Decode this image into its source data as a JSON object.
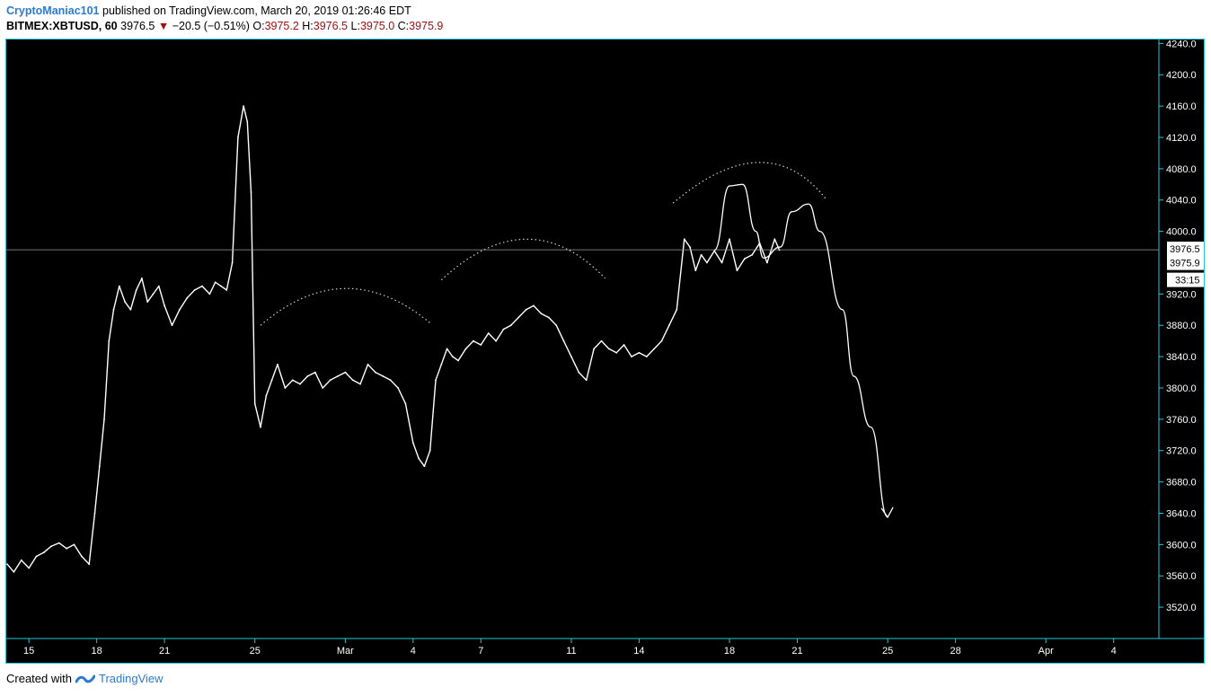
{
  "header": {
    "author": "CryptoManiac101",
    "published_text": "published on TradingView.com, March 20, 2019 01:26:46 EDT",
    "symbol": "BITMEX:XBTUSD, 60",
    "last": "3976.5",
    "change": "−20.5 (−0.51%)",
    "o_label": "O:",
    "o_val": "3975.2",
    "h_label": "H:",
    "h_val": "3976.5",
    "l_label": "L:",
    "l_val": "3975.0",
    "c_label": "C:",
    "c_val": "3975.9"
  },
  "footer": {
    "created_with": "Created with",
    "brand": "TradingView"
  },
  "colors": {
    "accent": "#26c6da",
    "author": "#2a7bd3",
    "down": "#a01010",
    "background": "#000000",
    "price_line": "#ffffff"
  },
  "chart_data": {
    "type": "line",
    "symbol": "BITMEX:XBTUSD",
    "interval": "60",
    "ylim": [
      3480,
      4245
    ],
    "yticks": [
      4240,
      4200,
      4160,
      4120,
      4080,
      4040,
      4000,
      3920,
      3880,
      3840,
      3800,
      3760,
      3720,
      3680,
      3640,
      3600,
      3560,
      3520
    ],
    "ytick_labels": [
      "4240.0",
      "4200.0",
      "4160.0",
      "4120.0",
      "4080.0",
      "4040.0",
      "4000.0",
      "3920.0",
      "3880.0",
      "3840.0",
      "3800.0",
      "3760.0",
      "3720.0",
      "3680.0",
      "3640.0",
      "3600.0",
      "3560.0",
      "3520.0"
    ],
    "xlim": [
      "2019-02-14T00:00",
      "2019-04-06T00:00"
    ],
    "xticks": [
      {
        "date": "2019-02-15",
        "label": "15"
      },
      {
        "date": "2019-02-18",
        "label": "18"
      },
      {
        "date": "2019-02-21",
        "label": "21"
      },
      {
        "date": "2019-02-25",
        "label": "25"
      },
      {
        "date": "2019-03-01",
        "label": "Mar"
      },
      {
        "date": "2019-03-04",
        "label": "4"
      },
      {
        "date": "2019-03-07",
        "label": "7"
      },
      {
        "date": "2019-03-11",
        "label": "11"
      },
      {
        "date": "2019-03-14",
        "label": "14"
      },
      {
        "date": "2019-03-18",
        "label": "18"
      },
      {
        "date": "2019-03-21",
        "label": "21"
      },
      {
        "date": "2019-03-25",
        "label": "25"
      },
      {
        "date": "2019-03-28",
        "label": "28"
      },
      {
        "date": "2019-04-01",
        "label": "Apr"
      },
      {
        "date": "2019-04-04",
        "label": "4"
      }
    ],
    "grid": false,
    "price_markers": [
      {
        "value": 3976.5,
        "label": "3976.5"
      },
      {
        "value": 3975.9,
        "label": "3975.9"
      }
    ],
    "countdown_label": "33:15",
    "series": [
      {
        "x": [
          "2019-02-14T01:00",
          "2019-02-14T08:00",
          "2019-02-14T16:00",
          "2019-02-15T00:00",
          "2019-02-15T08:00",
          "2019-02-15T16:00",
          "2019-02-16T00:00",
          "2019-02-16T08:00",
          "2019-02-16T16:00",
          "2019-02-17T00:00",
          "2019-02-17T08:00",
          "2019-02-17T16:00",
          "2019-02-17T22:00",
          "2019-02-18T03:00",
          "2019-02-18T08:00",
          "2019-02-18T13:00",
          "2019-02-18T18:00",
          "2019-02-19T00:00",
          "2019-02-19T06:00",
          "2019-02-19T12:00",
          "2019-02-19T18:00",
          "2019-02-20T00:00",
          "2019-02-20T06:00",
          "2019-02-20T12:00",
          "2019-02-20T18:00",
          "2019-02-21T00:00",
          "2019-02-21T08:00",
          "2019-02-21T16:00",
          "2019-02-22T00:00",
          "2019-02-22T08:00",
          "2019-02-22T16:00",
          "2019-02-23T00:00",
          "2019-02-23T06:00",
          "2019-02-23T12:00",
          "2019-02-23T18:00",
          "2019-02-24T00:00",
          "2019-02-24T06:00",
          "2019-02-24T12:00",
          "2019-02-24T16:00",
          "2019-02-24T20:00",
          "2019-02-25T00:00",
          "2019-02-25T06:00",
          "2019-02-25T12:00",
          "2019-02-25T18:00",
          "2019-02-26T00:00",
          "2019-02-26T08:00",
          "2019-02-26T16:00",
          "2019-02-27T00:00",
          "2019-02-27T08:00",
          "2019-02-27T16:00",
          "2019-02-28T00:00",
          "2019-02-28T08:00",
          "2019-02-28T16:00",
          "2019-03-01T00:00",
          "2019-03-01T08:00",
          "2019-03-01T16:00",
          "2019-03-02T00:00",
          "2019-03-02T08:00",
          "2019-03-02T16:00",
          "2019-03-03T00:00",
          "2019-03-03T08:00",
          "2019-03-03T16:00",
          "2019-03-04T00:00",
          "2019-03-04T06:00",
          "2019-03-04T12:00",
          "2019-03-04T18:00",
          "2019-03-05T00:00",
          "2019-03-05T06:00",
          "2019-03-05T12:00",
          "2019-03-05T18:00",
          "2019-03-06T00:00",
          "2019-03-06T08:00",
          "2019-03-06T16:00",
          "2019-03-07T00:00",
          "2019-03-07T08:00",
          "2019-03-07T16:00",
          "2019-03-08T00:00",
          "2019-03-08T08:00",
          "2019-03-08T16:00",
          "2019-03-09T00:00",
          "2019-03-09T08:00",
          "2019-03-09T16:00",
          "2019-03-10T00:00",
          "2019-03-10T08:00",
          "2019-03-10T16:00",
          "2019-03-11T00:00",
          "2019-03-11T08:00",
          "2019-03-11T16:00",
          "2019-03-12T00:00",
          "2019-03-12T08:00",
          "2019-03-12T16:00",
          "2019-03-13T00:00",
          "2019-03-13T08:00",
          "2019-03-13T16:00",
          "2019-03-14T00:00",
          "2019-03-14T08:00",
          "2019-03-14T16:00",
          "2019-03-15T00:00",
          "2019-03-15T08:00",
          "2019-03-15T16:00",
          "2019-03-16T00:00",
          "2019-03-16T06:00",
          "2019-03-16T12:00",
          "2019-03-16T18:00",
          "2019-03-17T00:00",
          "2019-03-17T08:00",
          "2019-03-17T16:00",
          "2019-03-18T00:00",
          "2019-03-18T08:00",
          "2019-03-18T16:00",
          "2019-03-19T00:00",
          "2019-03-19T08:00",
          "2019-03-19T16:00",
          "2019-03-20T00:00",
          "2019-03-20T05:00"
        ],
        "values": [
          3575,
          3565,
          3580,
          3570,
          3585,
          3590,
          3598,
          3602,
          3595,
          3600,
          3585,
          3575,
          3640,
          3700,
          3760,
          3860,
          3900,
          3930,
          3910,
          3900,
          3925,
          3940,
          3910,
          3920,
          3930,
          3905,
          3880,
          3900,
          3915,
          3925,
          3930,
          3920,
          3935,
          3930,
          3925,
          3960,
          4120,
          4160,
          4140,
          4050,
          3780,
          3750,
          3790,
          3810,
          3830,
          3800,
          3810,
          3805,
          3815,
          3820,
          3800,
          3810,
          3815,
          3820,
          3810,
          3805,
          3830,
          3820,
          3815,
          3810,
          3800,
          3780,
          3730,
          3710,
          3700,
          3720,
          3810,
          3830,
          3850,
          3840,
          3835,
          3850,
          3860,
          3855,
          3870,
          3860,
          3875,
          3880,
          3890,
          3900,
          3905,
          3895,
          3890,
          3880,
          3860,
          3840,
          3820,
          3810,
          3850,
          3860,
          3850,
          3845,
          3855,
          3840,
          3845,
          3840,
          3850,
          3860,
          3880,
          3900,
          3990,
          3980,
          3950,
          3970,
          3960,
          3975,
          3960,
          3990,
          3950,
          3965,
          3970,
          3985,
          3960,
          3990,
          3976
        ]
      }
    ],
    "drawings": [
      {
        "type": "arc",
        "style": "dotted",
        "start": [
          "2019-02-25T06:00",
          3880
        ],
        "peak": [
          "2019-03-01T00:00",
          3927
        ],
        "end": [
          "2019-03-04T18:00",
          3883
        ]
      },
      {
        "type": "arc",
        "style": "dotted",
        "start": [
          "2019-03-05T06:00",
          3938
        ],
        "peak": [
          "2019-03-09T00:00",
          3990
        ],
        "end": [
          "2019-03-12T12:00",
          3940
        ]
      },
      {
        "type": "arc",
        "style": "dotted",
        "start": [
          "2019-03-15T12:00",
          4036
        ],
        "peak": [
          "2019-03-19T06:00",
          4088
        ],
        "end": [
          "2019-03-22T06:00",
          4042
        ]
      },
      {
        "type": "projection",
        "style": "solid",
        "points": [
          [
            "2019-03-17T08:00",
            3976
          ],
          [
            "2019-03-18T00:00",
            4058
          ],
          [
            "2019-03-18T14:00",
            4060
          ],
          [
            "2019-03-19T04:00",
            4000
          ],
          [
            "2019-03-19T12:00",
            3966
          ],
          [
            "2019-03-20T06:00",
            3980
          ],
          [
            "2019-03-20T18:00",
            4025
          ],
          [
            "2019-03-21T12:00",
            4035
          ],
          [
            "2019-03-22T00:00",
            4000
          ],
          [
            "2019-03-23T00:00",
            3900
          ],
          [
            "2019-03-23T12:00",
            3815
          ],
          [
            "2019-03-24T06:00",
            3750
          ],
          [
            "2019-03-25T00:00",
            3635
          ]
        ],
        "arrow": true
      }
    ]
  }
}
